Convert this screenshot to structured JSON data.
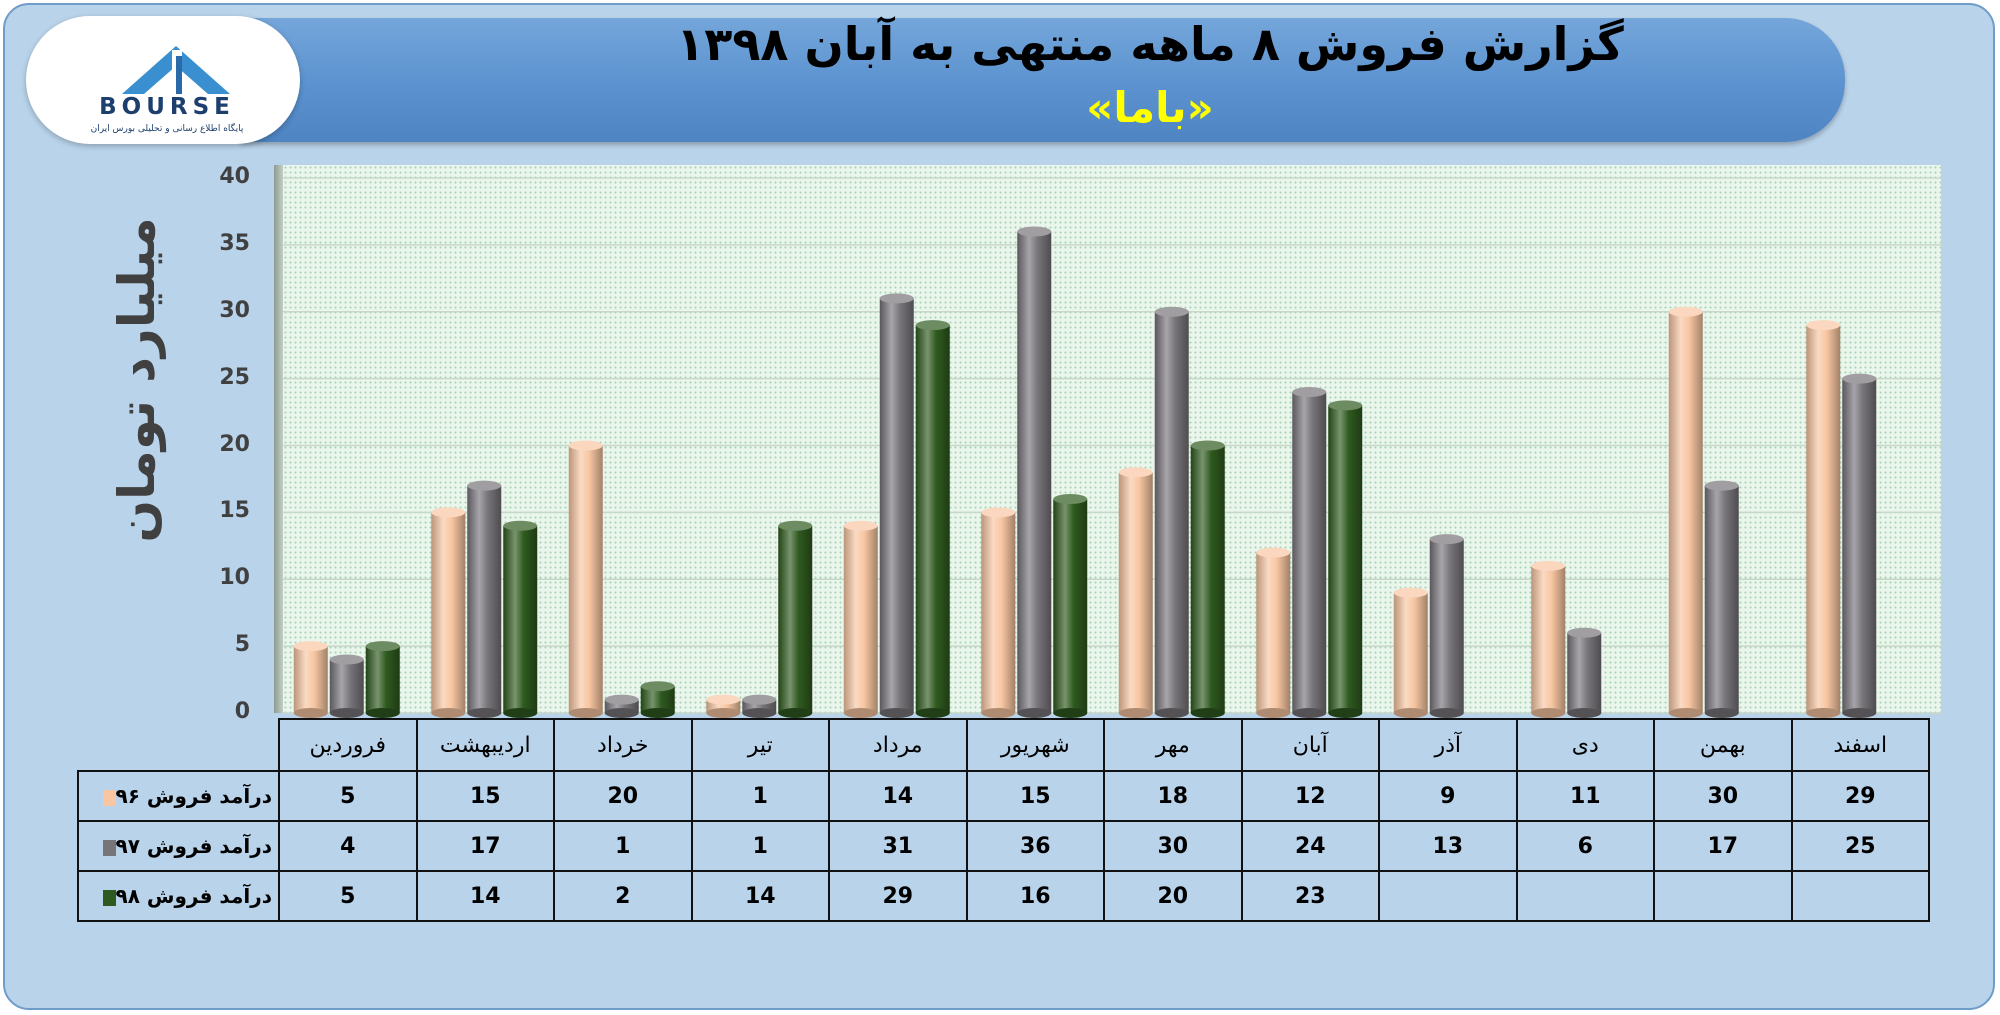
{
  "header": {
    "title": "گزارش فروش ۸ ماهه منتهی به آبان ۱۳۹۸",
    "subtitle": "«باما»"
  },
  "logo": {
    "wordmark": "BOURSE",
    "tagline": "پایگاه اطلاع رسانی و تحلیلی بورس ایران"
  },
  "colors": {
    "series_96": "#f8c6a2",
    "series_97": "#78757a",
    "series_98": "#2f5a1f",
    "banner": "#5b92cf",
    "subtitle": "#ffff00",
    "frame": "#b9d3ea"
  },
  "chart_data": {
    "type": "bar",
    "title": "گزارش فروش ۸ ماهه منتهی به آبان ۱۳۹۸",
    "subtitle": "«باما»",
    "ylabel": "میلیارد تومان",
    "xlabel": "",
    "ylim": [
      0,
      40
    ],
    "yticks": [
      0,
      5,
      10,
      15,
      20,
      25,
      30,
      35,
      40
    ],
    "grid": true,
    "legend": "data table below chart",
    "categories": [
      "فروردین",
      "اردیبهشت",
      "خرداد",
      "تیر",
      "مرداد",
      "شهریور",
      "مهر",
      "آبان",
      "آذر",
      "دی",
      "بهمن",
      "اسفند"
    ],
    "series": [
      {
        "name": "درآمد فروش ۹۶",
        "color": "#f8c6a2",
        "values": [
          5,
          15,
          20,
          1,
          14,
          15,
          18,
          12,
          9,
          11,
          30,
          29
        ]
      },
      {
        "name": "درآمد فروش ۹۷",
        "color": "#78757a",
        "values": [
          4,
          17,
          1,
          1,
          31,
          36,
          30,
          24,
          13,
          6,
          17,
          25
        ]
      },
      {
        "name": "درآمد فروش ۹۸",
        "color": "#2f5a1f",
        "values": [
          5,
          14,
          2,
          14,
          29,
          16,
          20,
          23,
          null,
          null,
          null,
          null
        ]
      }
    ]
  }
}
